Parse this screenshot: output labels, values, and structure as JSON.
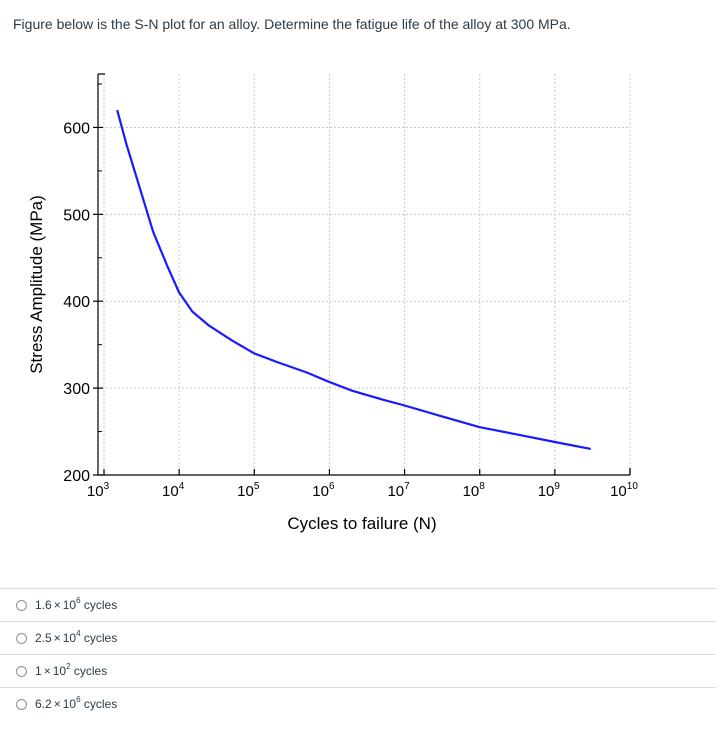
{
  "question": {
    "text": "Figure below is the S-N plot for an alloy. Determine the fatigue life of the alloy at 300 MPa."
  },
  "chart_data": {
    "type": "line",
    "title": "",
    "xlabel": "Cycles to failure (N)",
    "ylabel": "Stress Amplitude (MPa)",
    "xscale": "log",
    "xlim": [
      1000,
      10000000000
    ],
    "ylim": [
      200,
      650
    ],
    "x_ticks": [
      {
        "base": "10",
        "exp": "3",
        "value": 1000
      },
      {
        "base": "10",
        "exp": "4",
        "value": 10000
      },
      {
        "base": "10",
        "exp": "5",
        "value": 100000
      },
      {
        "base": "10",
        "exp": "6",
        "value": 1000000
      },
      {
        "base": "10",
        "exp": "7",
        "value": 10000000
      },
      {
        "base": "10",
        "exp": "8",
        "value": 100000000
      },
      {
        "base": "10",
        "exp": "9",
        "value": 1000000000
      },
      {
        "base": "10",
        "exp": "10",
        "value": 10000000000
      }
    ],
    "y_ticks": [
      200,
      300,
      400,
      500,
      600
    ],
    "grid": true,
    "line_color": "#1a1aff",
    "series": [
      {
        "x": [
          1500,
          2000,
          3000,
          4500,
          7000,
          10000,
          15000,
          25000,
          50000,
          100000,
          200000,
          500000,
          1000000,
          2000000,
          5000000,
          10000000,
          30000000,
          100000000,
          300000000,
          1000000000,
          3000000000
        ],
        "y": [
          620,
          580,
          530,
          480,
          440,
          410,
          388,
          372,
          355,
          340,
          330,
          318,
          307,
          297,
          287,
          280,
          268,
          255,
          247,
          238,
          230
        ]
      }
    ]
  },
  "answers": [
    {
      "mantissa": "1.6",
      "exponent": "6",
      "unit": "cycles"
    },
    {
      "mantissa": "2.5",
      "exponent": "4",
      "unit": "cycles"
    },
    {
      "mantissa": "1",
      "exponent": "2",
      "unit": "cycles"
    },
    {
      "mantissa": "6.2",
      "exponent": "6",
      "unit": "cycles"
    }
  ],
  "times_symbol": "×"
}
